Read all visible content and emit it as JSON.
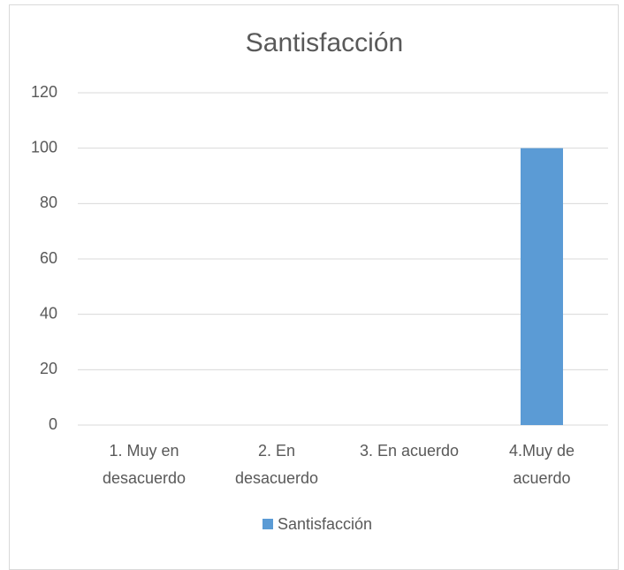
{
  "chart_data": {
    "type": "bar",
    "title": "Santisfacción",
    "categories": [
      "1. Muy en desacuerdo",
      "2. En desacuerdo",
      "3. En acuerdo",
      "4.Muy de acuerdo"
    ],
    "series": [
      {
        "name": "Santisfacción",
        "color": "#5b9bd5",
        "values": [
          0,
          0,
          0,
          100
        ]
      }
    ],
    "ylim": [
      0,
      120
    ],
    "yticks": [
      0,
      20,
      40,
      60,
      80,
      100,
      120
    ],
    "grid": true,
    "legend": "bottom"
  }
}
